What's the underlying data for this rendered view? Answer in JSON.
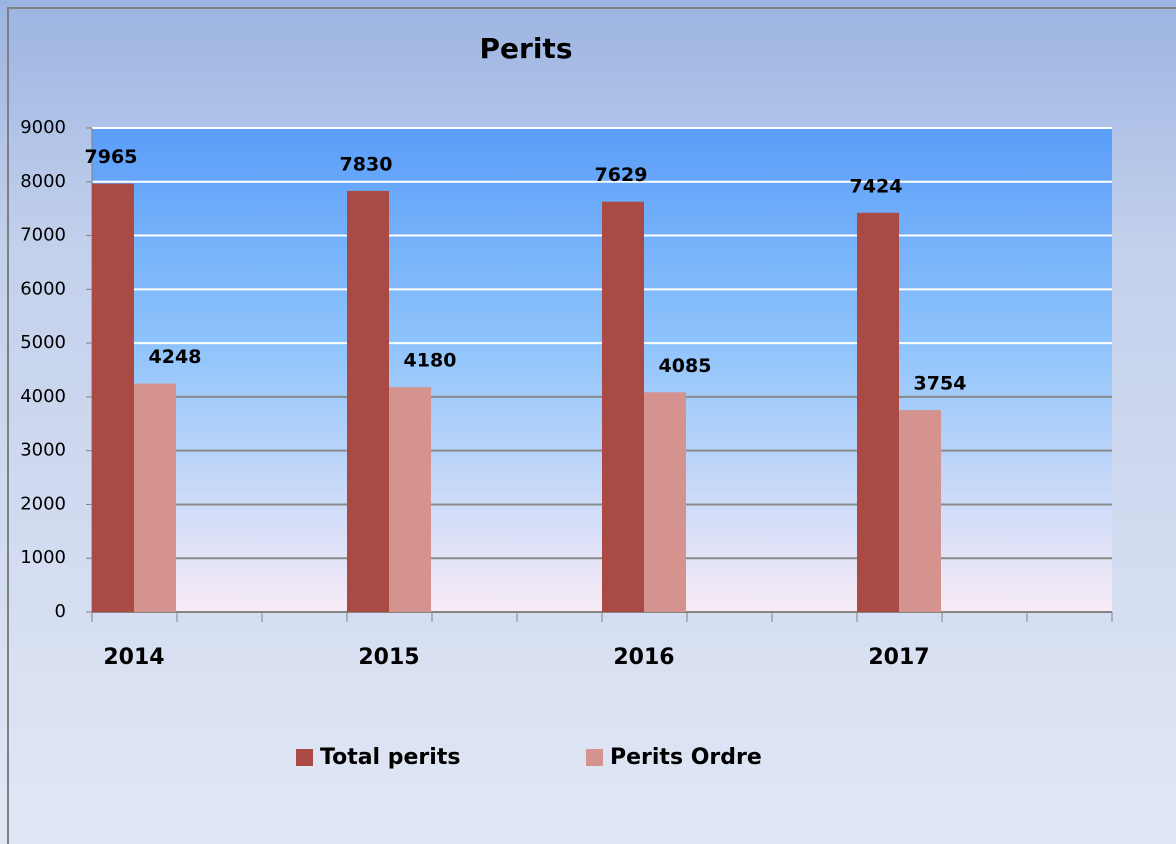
{
  "chart_data": {
    "type": "bar",
    "title": "Perits",
    "categories": [
      "2014",
      "2015",
      "2016",
      "2017"
    ],
    "series": [
      {
        "name": "Total perits",
        "color": "#a94a45",
        "values": [
          7965,
          7830,
          7629,
          7424
        ]
      },
      {
        "name": "Perits Ordre",
        "color": "#d4938f",
        "values": [
          4248,
          4180,
          4085,
          3754
        ]
      }
    ],
    "ylim": [
      0,
      9000
    ],
    "yticks": [
      0,
      1000,
      2000,
      3000,
      4000,
      5000,
      6000,
      7000,
      8000,
      9000
    ],
    "grid": true,
    "legend": "bottom"
  }
}
